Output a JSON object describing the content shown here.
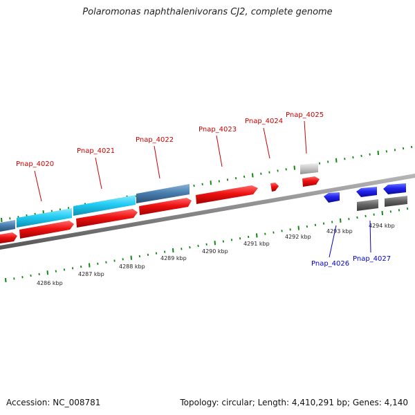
{
  "title": "Polaromonas naphthalenivorans CJ2, complete genome",
  "footer": {
    "accession": "Accession: NC_008781",
    "summary": "Topology: circular; Length: 4,410,291 bp; Genes: 4,140"
  },
  "kbp_labels": [
    "4286 kbp",
    "4287 kbp",
    "4288 kbp",
    "4289 kbp",
    "4290 kbp",
    "4291 kbp",
    "4292 kbp",
    "4293 kbp",
    "4294 kbp"
  ],
  "gene_labels_top": [
    "Pnap_4020",
    "Pnap_4021",
    "Pnap_4022",
    "Pnap_4023",
    "Pnap_4024",
    "Pnap_4025"
  ],
  "gene_labels_bottom": [
    "Pnap_4026",
    "Pnap_4027"
  ],
  "colors": {
    "forward_gene": "#ee1111",
    "reverse_gene": "#2222ee",
    "cyan_feature": "#22ccf4",
    "steel_feature": "#4a7fb0",
    "gray_feature": "#666666",
    "lightgray_feature": "#c4c4c4",
    "backbone": "#888888",
    "tick": "#118811",
    "top_label": "#cc0000",
    "bottom_label": "#0000cc"
  }
}
